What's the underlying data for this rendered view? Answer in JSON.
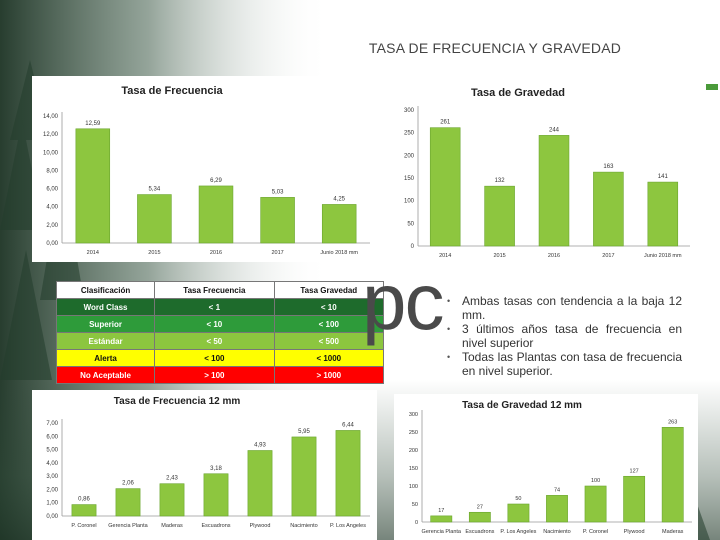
{
  "slide": {
    "title": "TASA DE FRECUENCIA Y GRAVEDAD"
  },
  "colors": {
    "bar": "#8dc63f",
    "bar_edge": "#6aa52e",
    "accent": "#4a9a3a",
    "forest": "#1f3a2a"
  },
  "classification_table": {
    "headers": [
      "Clasificación",
      "Tasa Frecuencia",
      "Tasa Gravedad"
    ],
    "rows": [
      {
        "name": "Word Class",
        "frecuencia": "< 1",
        "gravedad": "< 10",
        "color": "#1e6b2c",
        "text_color": "#ffffff"
      },
      {
        "name": "Superior",
        "frecuencia": "< 10",
        "gravedad": "< 100",
        "color": "#2e9b3a",
        "text_color": "#ffffff"
      },
      {
        "name": "Estándar",
        "frecuencia": "< 50",
        "gravedad": "< 500",
        "color": "#8cc63f",
        "text_color": "#ffffff"
      },
      {
        "name": "Alerta",
        "frecuencia": "< 100",
        "gravedad": "< 1000",
        "color": "#ffff00",
        "text_color": "#111111"
      },
      {
        "name": "No Aceptable",
        "frecuencia": "> 100",
        "gravedad": "> 1000",
        "color": "#ff0000",
        "text_color": "#ffffff"
      }
    ]
  },
  "big_text": "pc",
  "bullets": [
    "Ambas tasas con tendencia a la baja 12 mm.",
    "3 últimos años tasa de frecuencia en nivel superior",
    "Todas las Plantas con tasa de frecuencia en nivel superior."
  ],
  "chart_data": [
    {
      "type": "bar",
      "title": "Tasa de Frecuencia",
      "categories": [
        "2014",
        "2015",
        "2016",
        "2017",
        "Junio 2018 mm"
      ],
      "values": [
        12.59,
        5.34,
        6.29,
        5.03,
        4.25
      ],
      "data_labels": [
        "12,59",
        "5,34",
        "6,29",
        "5,03",
        "4,25"
      ],
      "yticks": [
        "0,00",
        "2,00",
        "4,00",
        "6,00",
        "8,00",
        "10,00",
        "12,00",
        "14,00"
      ],
      "ylim": [
        0,
        14
      ],
      "grid": false,
      "legend": "none"
    },
    {
      "type": "bar",
      "title": "Tasa de Gravedad",
      "categories": [
        "2014",
        "2015",
        "2016",
        "2017",
        "Junio 2018 mm"
      ],
      "values": [
        261,
        132,
        244,
        163,
        141
      ],
      "data_labels": [
        "261",
        "132",
        "244",
        "163",
        "141"
      ],
      "yticks": [
        "0",
        "50",
        "100",
        "150",
        "200",
        "250",
        "300"
      ],
      "ylim": [
        0,
        300
      ],
      "grid": false,
      "legend": "none"
    },
    {
      "type": "bar",
      "title": "Tasa de Frecuencia 12 mm",
      "categories": [
        "P. Coronel",
        "Gerencia Planta",
        "Maderas",
        "Escuadrons",
        "Plywood",
        "Nacimiento",
        "P. Los Angeles"
      ],
      "values": [
        0.86,
        2.06,
        2.43,
        3.18,
        4.93,
        5.95,
        6.44
      ],
      "data_labels": [
        "0,86",
        "2,06",
        "2,43",
        "3,18",
        "4,93",
        "5,95",
        "6,44"
      ],
      "yticks": [
        "0,00",
        "1,00",
        "2,00",
        "3,00",
        "4,00",
        "5,00",
        "6,00",
        "7,00"
      ],
      "ylim": [
        0,
        7
      ],
      "grid": false,
      "legend": "none"
    },
    {
      "type": "bar",
      "title": "Tasa de Gravedad 12 mm",
      "categories": [
        "Gerencia Planta",
        "Escuadrons",
        "P. Los Angeles",
        "Nacimiento",
        "P. Coronel",
        "Plywood",
        "Maderas"
      ],
      "values": [
        17,
        27,
        50,
        74,
        100,
        127,
        263
      ],
      "data_labels": [
        "17",
        "27",
        "50",
        "74",
        "100",
        "127",
        "263"
      ],
      "yticks": [
        "0",
        "50",
        "100",
        "150",
        "200",
        "250",
        "300"
      ],
      "ylim": [
        0,
        300
      ],
      "grid": false,
      "legend": "none"
    }
  ]
}
